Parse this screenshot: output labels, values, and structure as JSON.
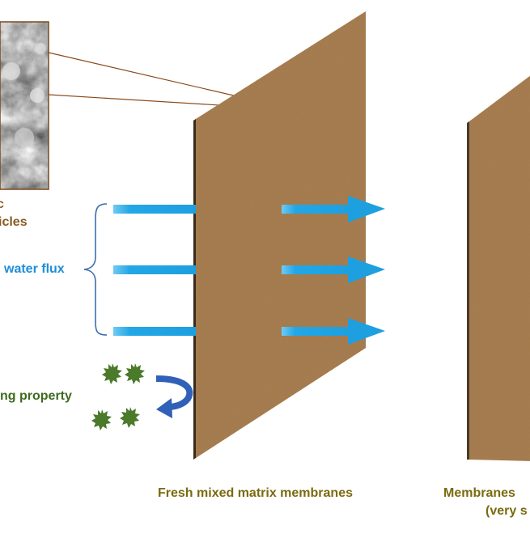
{
  "labels": {
    "particles_line1": "c",
    "particles_line2": "icles",
    "water_flux": "water flux",
    "antifouling": "ng property",
    "fresh_caption": "Fresh mixed matrix membranes",
    "used_caption_line1": "Membranes",
    "used_caption_line2": "(very s"
  },
  "colors": {
    "membrane": "#a57a4c",
    "membrane_edge": "#3a2a1a",
    "flux_arrow": "#22a7e6",
    "foulant": "#4a7a2a",
    "return_arrow": "#3060b8",
    "zoom_circle": "#e02020",
    "zoom_lines": "#8a4a1a"
  },
  "icons": {
    "sem_image": "sem-micrograph",
    "foulant": "spiky-particle-icon",
    "return_arrow": "curved-return-arrow-icon"
  }
}
